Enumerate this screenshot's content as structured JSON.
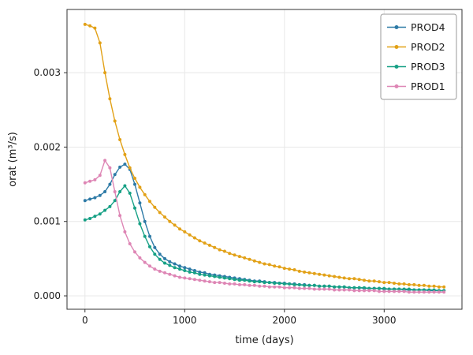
{
  "figure": {
    "background": "#ffffff",
    "spine_color": "#333333",
    "grid_color": "#e8e8e8",
    "tick_color": "#333333",
    "text_color": "#1a1a1a",
    "legend_border": "#9a9a9a"
  },
  "chart_data": {
    "type": "line",
    "title": "",
    "xlabel": "time (days)",
    "ylabel": "orat (m³/s)",
    "xlim": [
      -180,
      3780
    ],
    "ylim": [
      -0.00018,
      0.00385
    ],
    "xticks": [
      0,
      1000,
      2000,
      3000
    ],
    "xtick_labels": [
      "0",
      "1000",
      "2000",
      "3000"
    ],
    "yticks": [
      0,
      0.001,
      0.002,
      0.003
    ],
    "ytick_labels": [
      "0.000",
      "0.001",
      "0.002",
      "0.003"
    ],
    "grid": true,
    "legend_position": "top-right",
    "marker": "circle",
    "x": [
      0,
      50,
      100,
      150,
      200,
      250,
      300,
      350,
      400,
      450,
      500,
      550,
      600,
      650,
      700,
      750,
      800,
      850,
      900,
      950,
      1000,
      1050,
      1100,
      1150,
      1200,
      1250,
      1300,
      1350,
      1400,
      1450,
      1500,
      1550,
      1600,
      1650,
      1700,
      1750,
      1800,
      1850,
      1900,
      1950,
      2000,
      2050,
      2100,
      2150,
      2200,
      2250,
      2300,
      2350,
      2400,
      2450,
      2500,
      2550,
      2600,
      2650,
      2700,
      2750,
      2800,
      2850,
      2900,
      2950,
      3000,
      3050,
      3100,
      3150,
      3200,
      3250,
      3300,
      3350,
      3400,
      3450,
      3500,
      3550,
      3600
    ],
    "series": [
      {
        "name": "PROD4",
        "color": "#2d7aa6",
        "values": [
          0.00128,
          0.0013,
          0.00132,
          0.00135,
          0.0014,
          0.0015,
          0.00163,
          0.00173,
          0.00177,
          0.0017,
          0.0015,
          0.00125,
          0.001,
          0.0008,
          0.00065,
          0.00056,
          0.0005,
          0.00046,
          0.00043,
          0.0004,
          0.00038,
          0.00036,
          0.00034,
          0.00032,
          0.00031,
          0.00029,
          0.00028,
          0.00027,
          0.00026,
          0.00025,
          0.00024,
          0.00023,
          0.00022,
          0.00021,
          0.0002,
          0.0002,
          0.00019,
          0.00018,
          0.00018,
          0.00017,
          0.00017,
          0.00016,
          0.00016,
          0.00015,
          0.00015,
          0.00014,
          0.00014,
          0.00013,
          0.00013,
          0.00013,
          0.00012,
          0.00012,
          0.00012,
          0.00011,
          0.00011,
          0.00011,
          0.0001,
          0.0001,
          0.0001,
          0.0001,
          9e-05,
          9e-05,
          9e-05,
          9e-05,
          8e-05,
          8e-05,
          8e-05,
          8e-05,
          8e-05,
          7e-05,
          7e-05,
          7e-05,
          7e-05
        ]
      },
      {
        "name": "PROD2",
        "color": "#e2a117",
        "values": [
          0.00365,
          0.00363,
          0.0036,
          0.0034,
          0.003,
          0.00265,
          0.00235,
          0.0021,
          0.0019,
          0.00172,
          0.00158,
          0.00146,
          0.00136,
          0.00127,
          0.00119,
          0.00112,
          0.00106,
          0.001,
          0.00095,
          0.0009,
          0.00086,
          0.00082,
          0.00078,
          0.00074,
          0.00071,
          0.00068,
          0.00065,
          0.00062,
          0.0006,
          0.00057,
          0.00055,
          0.00053,
          0.00051,
          0.00049,
          0.00047,
          0.00045,
          0.00043,
          0.00042,
          0.0004,
          0.00039,
          0.00037,
          0.00036,
          0.00035,
          0.00033,
          0.00032,
          0.00031,
          0.0003,
          0.00029,
          0.00028,
          0.00027,
          0.00026,
          0.00025,
          0.00024,
          0.00023,
          0.00023,
          0.00022,
          0.00021,
          0.0002,
          0.0002,
          0.00019,
          0.00018,
          0.00018,
          0.00017,
          0.00016,
          0.00016,
          0.00015,
          0.00015,
          0.00014,
          0.00014,
          0.00013,
          0.00013,
          0.00012,
          0.00012
        ]
      },
      {
        "name": "PROD3",
        "color": "#16a085",
        "values": [
          0.00102,
          0.00104,
          0.00107,
          0.0011,
          0.00115,
          0.0012,
          0.00128,
          0.0014,
          0.00148,
          0.00138,
          0.00118,
          0.00097,
          0.0008,
          0.00066,
          0.00056,
          0.00049,
          0.00044,
          0.00041,
          0.00038,
          0.00036,
          0.00034,
          0.00032,
          0.00031,
          0.00029,
          0.00028,
          0.00027,
          0.00026,
          0.00025,
          0.00024,
          0.00023,
          0.00022,
          0.00021,
          0.00021,
          0.0002,
          0.00019,
          0.00019,
          0.00018,
          0.00018,
          0.00017,
          0.00017,
          0.00016,
          0.00016,
          0.00015,
          0.00015,
          0.00014,
          0.00014,
          0.00014,
          0.00013,
          0.00013,
          0.00013,
          0.00012,
          0.00012,
          0.00012,
          0.00011,
          0.00011,
          0.00011,
          0.00011,
          0.0001,
          0.0001,
          0.0001,
          0.0001,
          9e-05,
          9e-05,
          9e-05,
          9e-05,
          9e-05,
          8e-05,
          8e-05,
          8e-05,
          8e-05,
          8e-05,
          7e-05,
          7e-05
        ]
      },
      {
        "name": "PROD1",
        "color": "#de86b5",
        "values": [
          0.00152,
          0.00154,
          0.00156,
          0.00162,
          0.00182,
          0.00172,
          0.0014,
          0.00108,
          0.00086,
          0.0007,
          0.00059,
          0.00051,
          0.00045,
          0.0004,
          0.00036,
          0.00033,
          0.00031,
          0.00029,
          0.00027,
          0.00025,
          0.00024,
          0.00023,
          0.00022,
          0.00021,
          0.0002,
          0.00019,
          0.00018,
          0.00018,
          0.00017,
          0.00016,
          0.00016,
          0.00015,
          0.00015,
          0.00014,
          0.00014,
          0.00013,
          0.00013,
          0.00012,
          0.00012,
          0.00012,
          0.00011,
          0.00011,
          0.00011,
          0.0001,
          0.0001,
          0.0001,
          9e-05,
          9e-05,
          9e-05,
          9e-05,
          8e-05,
          8e-05,
          8e-05,
          8e-05,
          7e-05,
          7e-05,
          7e-05,
          7e-05,
          7e-05,
          6e-05,
          6e-05,
          6e-05,
          6e-05,
          6e-05,
          6e-05,
          5e-05,
          5e-05,
          5e-05,
          5e-05,
          5e-05,
          5e-05,
          5e-05,
          5e-05
        ]
      }
    ]
  }
}
